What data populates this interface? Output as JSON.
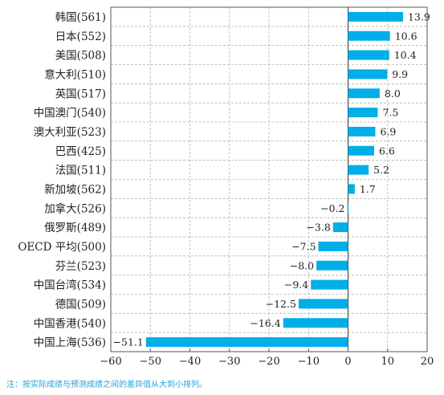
{
  "chart_data": {
    "type": "bar",
    "orientation": "horizontal",
    "categories": [
      "韩国(561)",
      "日本(552)",
      "美国(508)",
      "意大利(510)",
      "英国(517)",
      "中国澳门(540)",
      "澳大利亚(523)",
      "巴西(425)",
      "法国(511)",
      "新加坡(562)",
      "加拿大(526)",
      "俄罗斯(489)",
      "OECD 平均(500)",
      "芬兰(523)",
      "中国台湾(534)",
      "德国(509)",
      "中国香港(540)",
      "中国上海(536)"
    ],
    "values": [
      13.9,
      10.6,
      10.4,
      9.9,
      8.0,
      7.5,
      6.9,
      6.6,
      5.2,
      1.7,
      -0.2,
      -3.8,
      -7.5,
      -8.0,
      -9.4,
      -12.5,
      -16.4,
      -51.1
    ],
    "value_labels": [
      "13.9",
      "10.6",
      "10.4",
      "9.9",
      "8.0",
      "7.5",
      "6.9",
      "6.6",
      "5.2",
      "1.7",
      "−0.2",
      "−3.8",
      "−7.5",
      "−8.0",
      "−9.4",
      "−12.5",
      "−16.4",
      "−51.1"
    ],
    "xlim": [
      -60,
      20
    ],
    "xticks": [
      -60,
      -50,
      -40,
      -30,
      -20,
      -10,
      0,
      10,
      20
    ],
    "xtick_labels": [
      "−60",
      "−50",
      "−40",
      "−30",
      "−20",
      "−10",
      "0",
      "10",
      "20"
    ],
    "grid": true,
    "bar_color": "#00aee8",
    "note_color": "#1fa3d8"
  },
  "note": "注：按实际成绩与预测成绩之间的差异值从大到小排列。"
}
